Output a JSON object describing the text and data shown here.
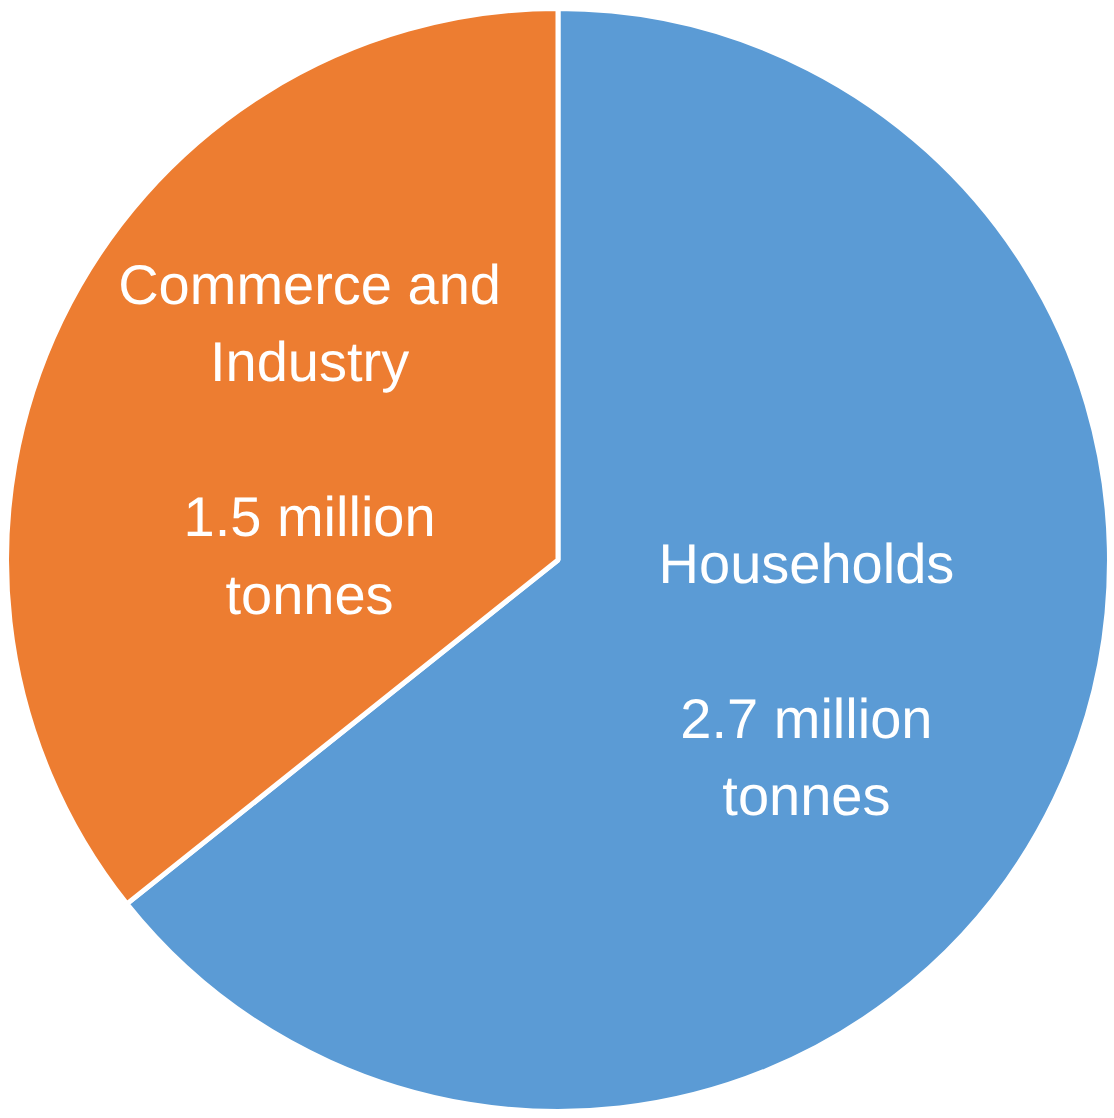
{
  "chart_data": {
    "type": "pie",
    "categories": [
      "Households",
      "Commerce and Industry"
    ],
    "values": [
      2.7,
      1.5
    ],
    "colors": [
      "#5b9bd5",
      "#ed7d31"
    ],
    "value_labels": [
      "2.7 million tonnes",
      "1.5 million tonnes"
    ]
  }
}
